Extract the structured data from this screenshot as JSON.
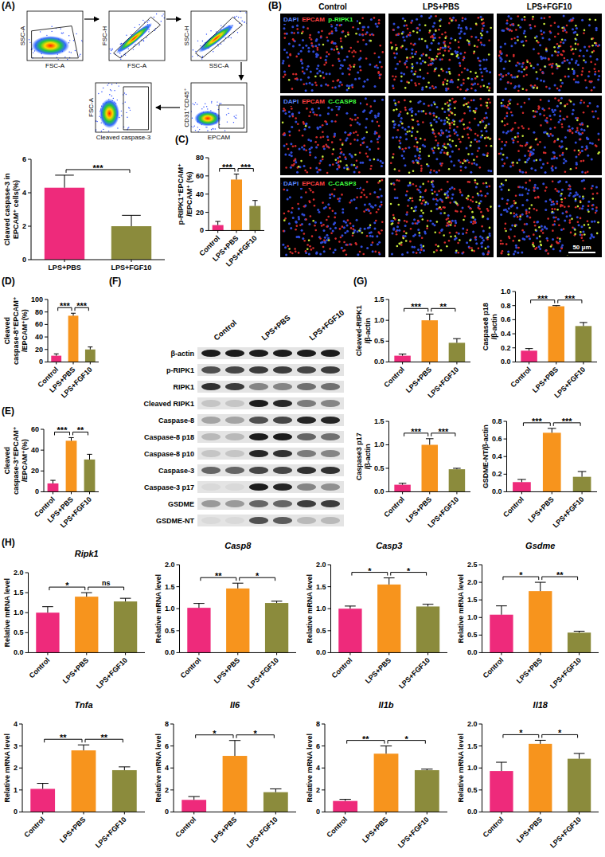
{
  "panel_letters": [
    "(A)",
    "(B)",
    "(C)",
    "(D)",
    "(E)",
    "(F)",
    "(G)",
    "(H)"
  ],
  "flow": {
    "plots": [
      {
        "x_label": "FSC-A",
        "y_label": "SSC-A"
      },
      {
        "x_label": "FSC-A",
        "y_label": "FSC-H"
      },
      {
        "x_label": "SSC-A",
        "y_label": "SSC-H"
      },
      {
        "x_label": "EPCAM",
        "y_label": "CD31⁺CD45⁺"
      },
      {
        "x_label": "Cleaved caspase-3",
        "y_label": "FSC-A"
      }
    ]
  },
  "if": {
    "columns": [
      "Control",
      "LPS+PBS",
      "LPS+FGF10"
    ],
    "rows": [
      [
        "DAPI",
        "EPCAM",
        "p-RIPK1"
      ],
      [
        "DAPI",
        "EPCAM",
        "C-CASP8"
      ],
      [
        "DAPI",
        "EPCAM",
        "C-CASP3"
      ]
    ],
    "scale_bar": "50 μm"
  },
  "blot": {
    "columns": [
      "Control",
      "LPS+PBS",
      "LPS+FGF10"
    ],
    "bands": [
      {
        "label": "β-actin",
        "intensity": [
          0.95,
          0.95,
          0.95,
          0.95,
          0.95,
          0.95
        ]
      },
      {
        "label": "p-RIPK1",
        "intensity": [
          0.7,
          0.75,
          0.8,
          0.8,
          0.75,
          0.8
        ]
      },
      {
        "label": "RIPK1",
        "intensity": [
          0.85,
          0.8,
          0.45,
          0.45,
          0.55,
          0.55
        ]
      },
      {
        "label": "Cleaved RIPK1",
        "intensity": [
          0.15,
          0.15,
          0.95,
          0.9,
          0.5,
          0.45
        ]
      },
      {
        "label": "Caspase-8",
        "intensity": [
          0.3,
          0.3,
          0.7,
          0.75,
          0.9,
          0.9
        ]
      },
      {
        "label": "Caspase-8 p18",
        "intensity": [
          0.2,
          0.2,
          0.95,
          0.95,
          0.6,
          0.55
        ]
      },
      {
        "label": "Caspase-8 p10",
        "intensity": [
          0.15,
          0.15,
          0.9,
          0.85,
          0.5,
          0.45
        ]
      },
      {
        "label": "Caspase-3",
        "intensity": [
          0.6,
          0.6,
          0.75,
          0.75,
          0.85,
          0.85
        ]
      },
      {
        "label": "Caspase-3 p17",
        "intensity": [
          0.05,
          0.05,
          0.95,
          0.9,
          0.45,
          0.4
        ]
      },
      {
        "label": "GSDME",
        "intensity": [
          0.35,
          0.35,
          0.6,
          0.6,
          0.8,
          0.8
        ]
      },
      {
        "label": "GSDME-NT",
        "intensity": [
          0.05,
          0.05,
          0.7,
          0.65,
          0.2,
          0.2
        ]
      }
    ]
  },
  "chart_data": [
    {
      "type": "bar",
      "y_label": "Cleaved caspase-3 in EPCAM⁺ cells(%)",
      "categories": [
        "LPS+PBS",
        "LPS+FGF10"
      ],
      "values": [
        4.3,
        2.0
      ],
      "errors": [
        0.75,
        0.65
      ],
      "colors": [
        "#ee2a7b",
        "#8b8b3c"
      ],
      "ylim": [
        0,
        6
      ],
      "yticks": [
        0,
        2,
        4,
        6
      ],
      "comparisons": [
        {
          "groups": [
            "LPS+PBS",
            "LPS+FGF10"
          ],
          "label": "***"
        }
      ]
    },
    {
      "type": "bar",
      "y_label": "p-RIPK1⁺EPCAM⁺/EPCAM⁺ (%)",
      "categories": [
        "Control",
        "LPS+PBS",
        "LPS+FGF10"
      ],
      "values": [
        6,
        56,
        27
      ],
      "errors": [
        4,
        6,
        6
      ],
      "colors": [
        "#ee2a7b",
        "#f7941d",
        "#8b8b3c"
      ],
      "ylim": [
        0,
        80
      ],
      "yticks": [
        0,
        20,
        40,
        60,
        80
      ],
      "comparisons": [
        {
          "groups": [
            "Control",
            "LPS+PBS"
          ],
          "label": "***"
        },
        {
          "groups": [
            "LPS+PBS",
            "LPS+FGF10"
          ],
          "label": "***"
        }
      ]
    },
    {
      "type": "bar",
      "y_label": "Cleaved caspase-8⁺EPCAM⁺/EPCAM⁺(%)",
      "categories": [
        "Control",
        "LPS+PBS",
        "LPS+FGF10"
      ],
      "values": [
        10,
        74,
        20
      ],
      "errors": [
        3,
        4,
        4
      ],
      "colors": [
        "#ee2a7b",
        "#f7941d",
        "#8b8b3c"
      ],
      "ylim": [
        0,
        100
      ],
      "yticks": [
        0,
        20,
        40,
        60,
        80,
        100
      ],
      "comparisons": [
        {
          "groups": [
            "Control",
            "LPS+PBS"
          ],
          "label": "***"
        },
        {
          "groups": [
            "LPS+PBS",
            "LPS+FGF10"
          ],
          "label": "***"
        }
      ]
    },
    {
      "type": "bar",
      "y_label": "Cleaved caspase-3⁺EPCAM⁺/EPCAM⁺(%)",
      "categories": [
        "Control",
        "LPS+PBS",
        "LPS+FGF10"
      ],
      "values": [
        8,
        49,
        31
      ],
      "errors": [
        3,
        3,
        5
      ],
      "colors": [
        "#ee2a7b",
        "#f7941d",
        "#8b8b3c"
      ],
      "ylim": [
        0,
        60
      ],
      "yticks": [
        0,
        20,
        40,
        60
      ],
      "comparisons": [
        {
          "groups": [
            "Control",
            "LPS+PBS"
          ],
          "label": "***"
        },
        {
          "groups": [
            "LPS+PBS",
            "LPS+FGF10"
          ],
          "label": "**"
        }
      ]
    },
    {
      "type": "bar",
      "y_label": "Cleaved-RIPK1/β-actin",
      "categories": [
        "Control",
        "LPS+PBS",
        "LPS+FGF10"
      ],
      "values": [
        0.15,
        1.0,
        0.46
      ],
      "errors": [
        0.04,
        0.15,
        0.1
      ],
      "colors": [
        "#ee2a7b",
        "#f7941d",
        "#8b8b3c"
      ],
      "ylim": [
        0,
        1.5
      ],
      "yticks": [
        {
          "value": 0,
          "label": "0.0"
        },
        0.5,
        {
          "value": 1,
          "label": "1.0"
        },
        1.5
      ],
      "comparisons": [
        {
          "groups": [
            "Control",
            "LPS+PBS"
          ],
          "label": "***"
        },
        {
          "groups": [
            "LPS+PBS",
            "LPS+FGF10"
          ],
          "label": "**"
        }
      ]
    },
    {
      "type": "bar",
      "y_label": "Caspase8 p18/β-actin",
      "categories": [
        "Control",
        "LPS+PBS",
        "LPS+FGF10"
      ],
      "values": [
        0.16,
        0.79,
        0.51
      ],
      "errors": [
        0.03,
        0.01,
        0.05
      ],
      "colors": [
        "#ee2a7b",
        "#f7941d",
        "#8b8b3c"
      ],
      "ylim": [
        0,
        1.0
      ],
      "yticks": [
        {
          "value": 0,
          "label": "0.0"
        },
        0.2,
        0.4,
        0.6,
        0.8,
        {
          "value": 1,
          "label": "1.0"
        }
      ],
      "comparisons": [
        {
          "groups": [
            "Control",
            "LPS+PBS"
          ],
          "label": "***"
        },
        {
          "groups": [
            "LPS+PBS",
            "LPS+FGF10"
          ],
          "label": "***"
        }
      ]
    },
    {
      "type": "bar",
      "y_label": "Caspase3 p17/β-actin",
      "categories": [
        "Control",
        "LPS+PBS",
        "LPS+FGF10"
      ],
      "values": [
        0.15,
        1.0,
        0.48
      ],
      "errors": [
        0.03,
        0.13,
        0.02
      ],
      "colors": [
        "#ee2a7b",
        "#f7941d",
        "#8b8b3c"
      ],
      "ylim": [
        0,
        1.5
      ],
      "yticks": [
        {
          "value": 0,
          "label": "0.0"
        },
        0.5,
        {
          "value": 1,
          "label": "1.0"
        },
        1.5
      ],
      "comparisons": [
        {
          "groups": [
            "Control",
            "LPS+PBS"
          ],
          "label": "***"
        },
        {
          "groups": [
            "LPS+PBS",
            "LPS+FGF10"
          ],
          "label": "***"
        }
      ]
    },
    {
      "type": "bar",
      "y_label": "GSDME-NT/β-actin",
      "categories": [
        "Control",
        "LPS+PBS",
        "LPS+FGF10"
      ],
      "values": [
        0.11,
        0.67,
        0.17
      ],
      "errors": [
        0.03,
        0.05,
        0.06
      ],
      "colors": [
        "#ee2a7b",
        "#f7941d",
        "#8b8b3c"
      ],
      "ylim": [
        0,
        0.8
      ],
      "yticks": [
        {
          "value": 0,
          "label": "0.0"
        },
        0.2,
        0.4,
        0.6,
        0.8
      ],
      "comparisons": [
        {
          "groups": [
            "Control",
            "LPS+PBS"
          ],
          "label": "***"
        },
        {
          "groups": [
            "LPS+PBS",
            "LPS+FGF10"
          ],
          "label": "***"
        }
      ]
    },
    {
      "type": "bar",
      "title": "Ripk1",
      "y_label": "Relative mRNA level",
      "categories": [
        "Control",
        "LPS+PBS",
        "LPS+FGF10"
      ],
      "values": [
        1.0,
        1.4,
        1.28
      ],
      "errors": [
        0.15,
        0.1,
        0.08
      ],
      "colors": [
        "#ee2a7b",
        "#f7941d",
        "#8b8b3c"
      ],
      "ylim": [
        0,
        2.0
      ],
      "yticks": [
        {
          "value": 0,
          "label": "0.0"
        },
        0.5,
        {
          "value": 1,
          "label": "1.0"
        },
        1.5,
        {
          "value": 2,
          "label": "2.0"
        }
      ],
      "comparisons": [
        {
          "groups": [
            "Control",
            "LPS+PBS"
          ],
          "label": "*"
        },
        {
          "groups": [
            "LPS+PBS",
            "LPS+FGF10"
          ],
          "label": "ns"
        }
      ]
    },
    {
      "type": "bar",
      "title": "Casp8",
      "y_label": "Relative mRNA level",
      "categories": [
        "Control",
        "LPS+PBS",
        "LPS+FGF10"
      ],
      "values": [
        1.02,
        1.46,
        1.13
      ],
      "errors": [
        0.1,
        0.12,
        0.04
      ],
      "colors": [
        "#ee2a7b",
        "#f7941d",
        "#8b8b3c"
      ],
      "ylim": [
        0,
        2.0
      ],
      "yticks": [
        {
          "value": 0,
          "label": "0.0"
        },
        0.5,
        {
          "value": 1,
          "label": "1.0"
        },
        1.5,
        {
          "value": 2,
          "label": "2.0"
        }
      ],
      "comparisons": [
        {
          "groups": [
            "Control",
            "LPS+PBS"
          ],
          "label": "**"
        },
        {
          "groups": [
            "LPS+PBS",
            "LPS+FGF10"
          ],
          "label": "*"
        }
      ]
    },
    {
      "type": "bar",
      "title": "Casp3",
      "y_label": "Relative mRNA level",
      "categories": [
        "Control",
        "LPS+PBS",
        "LPS+FGF10"
      ],
      "values": [
        1.0,
        1.55,
        1.05
      ],
      "errors": [
        0.06,
        0.15,
        0.05
      ],
      "colors": [
        "#ee2a7b",
        "#f7941d",
        "#8b8b3c"
      ],
      "ylim": [
        0,
        2.0
      ],
      "yticks": [
        {
          "value": 0,
          "label": "0.0"
        },
        0.5,
        {
          "value": 1,
          "label": "1.0"
        },
        1.5,
        {
          "value": 2,
          "label": "2.0"
        }
      ],
      "comparisons": [
        {
          "groups": [
            "Control",
            "LPS+PBS"
          ],
          "label": "*"
        },
        {
          "groups": [
            "LPS+PBS",
            "LPS+FGF10"
          ],
          "label": "*"
        }
      ]
    },
    {
      "type": "bar",
      "title": "Gsdme",
      "y_label": "Relative mRNA level",
      "categories": [
        "Control",
        "LPS+PBS",
        "LPS+FGF10"
      ],
      "values": [
        1.08,
        1.75,
        0.57
      ],
      "errors": [
        0.25,
        0.25,
        0.04
      ],
      "colors": [
        "#ee2a7b",
        "#f7941d",
        "#8b8b3c"
      ],
      "ylim": [
        0,
        2.5
      ],
      "yticks": [
        {
          "value": 0,
          "label": "0.0"
        },
        0.5,
        {
          "value": 1,
          "label": "1.0"
        },
        1.5,
        {
          "value": 2,
          "label": "2.0"
        },
        2.5
      ],
      "comparisons": [
        {
          "groups": [
            "Control",
            "LPS+PBS"
          ],
          "label": "*"
        },
        {
          "groups": [
            "LPS+PBS",
            "LPS+FGF10"
          ],
          "label": "**"
        }
      ]
    },
    {
      "type": "bar",
      "title": "Tnfa",
      "y_label": "Relative mRNA level",
      "categories": [
        "Control",
        "LPS+PBS",
        "LPS+FGF10"
      ],
      "values": [
        1.05,
        2.8,
        1.9
      ],
      "errors": [
        0.25,
        0.25,
        0.15
      ],
      "colors": [
        "#ee2a7b",
        "#f7941d",
        "#8b8b3c"
      ],
      "ylim": [
        0,
        4
      ],
      "yticks": [
        0,
        1,
        2,
        3,
        4
      ],
      "comparisons": [
        {
          "groups": [
            "Control",
            "LPS+PBS"
          ],
          "label": "**"
        },
        {
          "groups": [
            "LPS+PBS",
            "LPS+FGF10"
          ],
          "label": "**"
        }
      ]
    },
    {
      "type": "bar",
      "title": "Il6",
      "y_label": "Relative mRNA level",
      "categories": [
        "Control",
        "LPS+PBS",
        "LPS+FGF10"
      ],
      "values": [
        1.1,
        5.1,
        1.8
      ],
      "errors": [
        0.3,
        1.4,
        0.3
      ],
      "colors": [
        "#ee2a7b",
        "#f7941d",
        "#8b8b3c"
      ],
      "ylim": [
        0,
        8
      ],
      "yticks": [
        0,
        2,
        4,
        6,
        8
      ],
      "comparisons": [
        {
          "groups": [
            "Control",
            "LPS+PBS"
          ],
          "label": "*"
        },
        {
          "groups": [
            "LPS+PBS",
            "LPS+FGF10"
          ],
          "label": "*"
        }
      ]
    },
    {
      "type": "bar",
      "title": "Il1b",
      "y_label": "Relative mRNA level",
      "categories": [
        "Control",
        "LPS+PBS",
        "LPS+FGF10"
      ],
      "values": [
        1.0,
        5.3,
        3.8
      ],
      "errors": [
        0.15,
        0.7,
        0.1
      ],
      "colors": [
        "#ee2a7b",
        "#f7941d",
        "#8b8b3c"
      ],
      "ylim": [
        0,
        8
      ],
      "yticks": [
        0,
        2,
        4,
        6,
        8
      ],
      "comparisons": [
        {
          "groups": [
            "Control",
            "LPS+PBS"
          ],
          "label": "**"
        },
        {
          "groups": [
            "LPS+PBS",
            "LPS+FGF10"
          ],
          "label": "*"
        }
      ]
    },
    {
      "type": "bar",
      "title": "Il18",
      "y_label": "Relative mRNA level",
      "categories": [
        "Control",
        "LPS+PBS",
        "LPS+FGF10"
      ],
      "values": [
        0.93,
        1.55,
        1.21
      ],
      "errors": [
        0.2,
        0.08,
        0.12
      ],
      "colors": [
        "#ee2a7b",
        "#f7941d",
        "#8b8b3c"
      ],
      "ylim": [
        0,
        2.0
      ],
      "yticks": [
        {
          "value": 0,
          "label": "0.0"
        },
        0.5,
        {
          "value": 1,
          "label": "1.0"
        },
        1.5,
        {
          "value": 2,
          "label": "2.0"
        }
      ],
      "comparisons": [
        {
          "groups": [
            "Control",
            "LPS+PBS"
          ],
          "label": "*"
        },
        {
          "groups": [
            "LPS+PBS",
            "LPS+FGF10"
          ],
          "label": "*"
        }
      ]
    }
  ]
}
